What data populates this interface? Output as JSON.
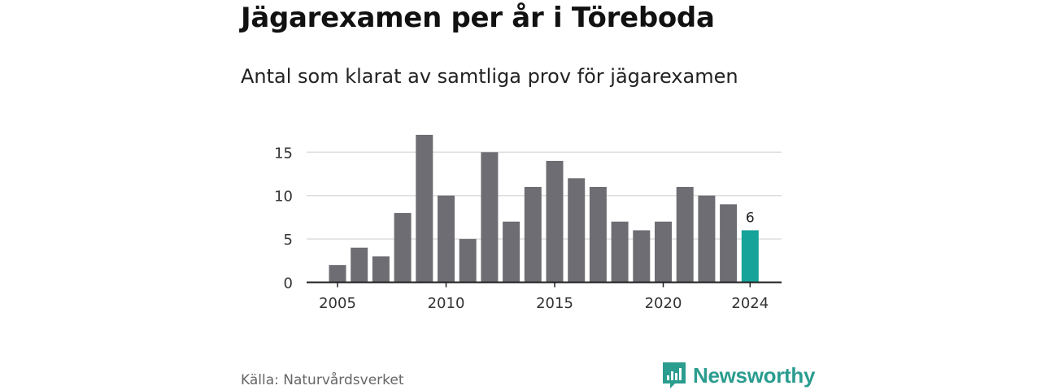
{
  "title": "Jägarexamen per år i Töreboda",
  "subtitle": "Antal som klarat av samtliga prov för jägarexamen",
  "source": "Källa: Naturvårdsverket",
  "brand": {
    "name": "Newsworthy",
    "icon": "newsworthy-logo-icon",
    "color": "#2a9d8f"
  },
  "colors": {
    "bar": "#6e6d73",
    "highlight": "#16a39a",
    "grid": "#dddddd",
    "axis": "#222222"
  },
  "chart_data": {
    "type": "bar",
    "x": [
      2005,
      2006,
      2007,
      2008,
      2009,
      2010,
      2011,
      2012,
      2013,
      2014,
      2015,
      2016,
      2017,
      2018,
      2019,
      2020,
      2021,
      2022,
      2023,
      2024
    ],
    "values": [
      2,
      4,
      3,
      8,
      17,
      10,
      5,
      15,
      7,
      11,
      14,
      12,
      11,
      7,
      6,
      7,
      11,
      10,
      9,
      6
    ],
    "x_ticks": [
      "2005",
      "2010",
      "2015",
      "2020",
      "2024"
    ],
    "y_ticks": [
      0,
      5,
      10,
      15
    ],
    "ylim": [
      0,
      17
    ],
    "grid": true,
    "highlight": {
      "x": 2024,
      "label": "6"
    },
    "xlabel": "",
    "ylabel": ""
  }
}
